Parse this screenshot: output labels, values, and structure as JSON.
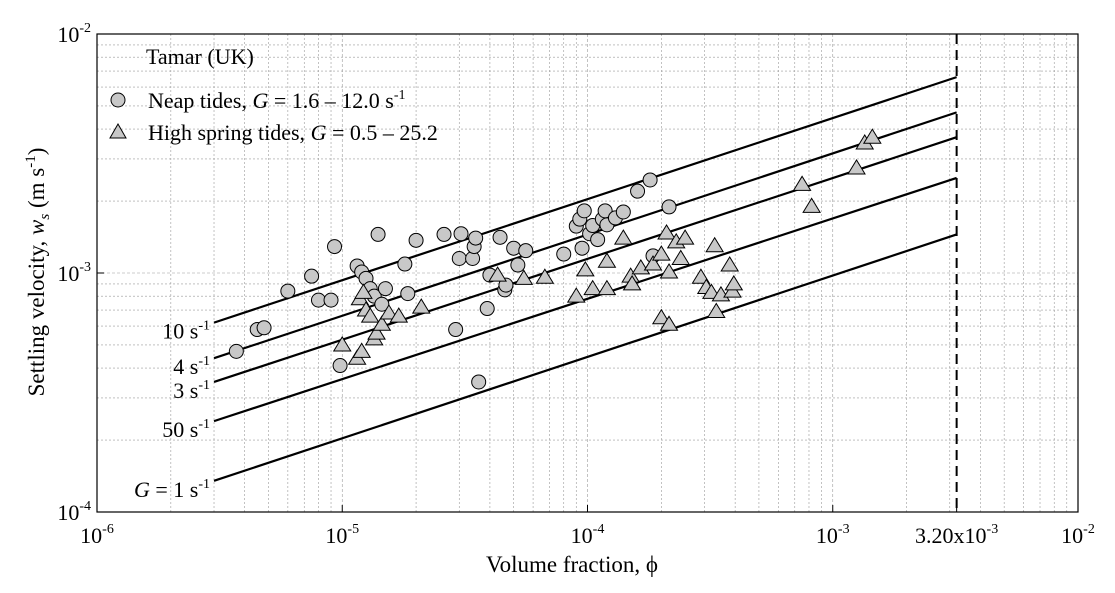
{
  "chart_data": {
    "type": "scatter",
    "x_scale": "log",
    "y_scale": "log",
    "xlim": [
      1e-06,
      0.01
    ],
    "ylim": [
      0.0001,
      0.01
    ],
    "xlabel": "Volume fraction, ϕ",
    "ylabel_parts": {
      "text": "Settling velocity, ",
      "var": "w",
      "sub": "s",
      "units_pre": " (m s",
      "units_sup": "-1",
      "units_post": ")"
    },
    "x_ticks": [
      {
        "value": 1e-06,
        "base": "10",
        "exp": "-6"
      },
      {
        "value": 1e-05,
        "base": "10",
        "exp": "-5"
      },
      {
        "value": 0.0001,
        "base": "10",
        "exp": "-4"
      },
      {
        "value": 0.001,
        "base": "10",
        "exp": "-3"
      },
      {
        "value": 0.0032,
        "base": "3.20x10",
        "exp": "-3"
      },
      {
        "value": 0.01,
        "base": "10",
        "exp": "-2"
      }
    ],
    "y_ticks": [
      {
        "value": 0.0001,
        "base": "10",
        "exp": "-4"
      },
      {
        "value": 0.001,
        "base": "10",
        "exp": "-3"
      },
      {
        "value": 0.01,
        "base": "10",
        "exp": "-2"
      }
    ],
    "vertical_line": {
      "x": 0.0032,
      "style": "dashed"
    },
    "legend": {
      "position": "top-left",
      "title": "Tamar (UK)",
      "entries": [
        {
          "marker": "circle",
          "pre": "Neap tides, ",
          "var": "G",
          "post": " = 1.6 – 12.0 s",
          "sup": "-1"
        },
        {
          "marker": "triangle",
          "pre": "High spring tides, ",
          "var": "G",
          "post": " = 0.5 – 25.2",
          "sup": ""
        }
      ]
    },
    "reference_lines": [
      {
        "prefix": "",
        "label": "10 s",
        "sup": "-1",
        "x_start": 3e-06,
        "x_end": 0.0032,
        "y_start": 0.00062,
        "y_end": 0.0066
      },
      {
        "prefix": "",
        "label": "4 s",
        "sup": "-1",
        "x_start": 3e-06,
        "x_end": 0.0032,
        "y_start": 0.00044,
        "y_end": 0.0047
      },
      {
        "prefix": "",
        "label": "3 s",
        "sup": "-1",
        "x_start": 3e-06,
        "x_end": 0.0032,
        "y_start": 0.00035,
        "y_end": 0.0037
      },
      {
        "prefix": "",
        "label": "50 s",
        "sup": "-1",
        "x_start": 3e-06,
        "x_end": 0.0032,
        "y_start": 0.00024,
        "y_end": 0.0025
      },
      {
        "prefix": "G",
        "label": " = 1 s",
        "sup": "-1",
        "x_start": 3e-06,
        "x_end": 0.0032,
        "y_start": 0.000135,
        "y_end": 0.00145
      }
    ],
    "series": [
      {
        "name": "Neap tides",
        "marker": "circle",
        "color": "#c8c8c8",
        "points": [
          [
            3.7e-06,
            0.00047
          ],
          [
            4.5e-06,
            0.00058
          ],
          [
            4.8e-06,
            0.00059
          ],
          [
            6e-06,
            0.00084
          ],
          [
            7.5e-06,
            0.00097
          ],
          [
            8e-06,
            0.00077
          ],
          [
            9e-06,
            0.00077
          ],
          [
            9.3e-06,
            0.00129
          ],
          [
            9.8e-06,
            0.00041
          ],
          [
            1.15e-05,
            0.00107
          ],
          [
            1.2e-05,
            0.00101
          ],
          [
            1.25e-05,
            0.00095
          ],
          [
            1.3e-05,
            0.00086
          ],
          [
            1.35e-05,
            0.0008
          ],
          [
            1.45e-05,
            0.00074
          ],
          [
            1.5e-05,
            0.00086
          ],
          [
            1.4e-05,
            0.00145
          ],
          [
            1.8e-05,
            0.00109
          ],
          [
            1.85e-05,
            0.00082
          ],
          [
            2e-05,
            0.00137
          ],
          [
            2.6e-05,
            0.00145
          ],
          [
            2.9e-05,
            0.00058
          ],
          [
            3e-05,
            0.00115
          ],
          [
            3.05e-05,
            0.00146
          ],
          [
            3.4e-05,
            0.00115
          ],
          [
            3.45e-05,
            0.00129
          ],
          [
            3.5e-05,
            0.0014
          ],
          [
            3.6e-05,
            0.00035
          ],
          [
            3.9e-05,
            0.00071
          ],
          [
            4e-05,
            0.00098
          ],
          [
            4.4e-05,
            0.00141
          ],
          [
            4.6e-05,
            0.00085
          ],
          [
            4.65e-05,
            0.00089
          ],
          [
            5e-05,
            0.00127
          ],
          [
            5.2e-05,
            0.00108
          ],
          [
            5.6e-05,
            0.00124
          ],
          [
            8e-05,
            0.0012
          ],
          [
            9e-05,
            0.00157
          ],
          [
            9.3e-05,
            0.00168
          ],
          [
            9.5e-05,
            0.00127
          ],
          [
            9.7e-05,
            0.00182
          ],
          [
            0.000102,
            0.00146
          ],
          [
            0.000105,
            0.00158
          ],
          [
            0.00011,
            0.00138
          ],
          [
            0.000115,
            0.00168
          ],
          [
            0.000118,
            0.00182
          ],
          [
            0.00012,
            0.00159
          ],
          [
            0.00013,
            0.0017
          ],
          [
            0.00014,
            0.0018
          ],
          [
            0.00016,
            0.0022
          ],
          [
            0.00018,
            0.00245
          ],
          [
            0.000185,
            0.00118
          ],
          [
            0.000215,
            0.00189
          ]
        ]
      },
      {
        "name": "High spring tides",
        "marker": "triangle",
        "color": "#c8c8c8",
        "points": [
          [
            1e-05,
            0.0005
          ],
          [
            1.15e-05,
            0.00044
          ],
          [
            1.18e-05,
            0.00078
          ],
          [
            1.2e-05,
            0.00047
          ],
          [
            1.22e-05,
            0.00083
          ],
          [
            1.25e-05,
            0.0007
          ],
          [
            1.3e-05,
            0.00066
          ],
          [
            1.35e-05,
            0.00053
          ],
          [
            1.38e-05,
            0.00056
          ],
          [
            1.45e-05,
            0.00061
          ],
          [
            1.55e-05,
            0.00068
          ],
          [
            1.7e-05,
            0.00066
          ],
          [
            2.1e-05,
            0.00072
          ],
          [
            4.3e-05,
            0.00098
          ],
          [
            5.5e-05,
            0.00095
          ],
          [
            6.7e-05,
            0.00096
          ],
          [
            9e-05,
            0.0008
          ],
          [
            9.8e-05,
            0.00103
          ],
          [
            0.000105,
            0.00086
          ],
          [
            0.00012,
            0.00112
          ],
          [
            0.00012,
            0.00086
          ],
          [
            0.00014,
            0.0014
          ],
          [
            0.00015,
            0.00097
          ],
          [
            0.000152,
            0.0009
          ],
          [
            0.000165,
            0.00105
          ],
          [
            0.000185,
            0.00109
          ],
          [
            0.0002,
            0.00065
          ],
          [
            0.0002,
            0.0012
          ],
          [
            0.00021,
            0.00147
          ],
          [
            0.000215,
            0.00101
          ],
          [
            0.000215,
            0.00061
          ],
          [
            0.00023,
            0.00135
          ],
          [
            0.00024,
            0.00115
          ],
          [
            0.00025,
            0.0014
          ],
          [
            0.00029,
            0.00096
          ],
          [
            0.000305,
            0.00087
          ],
          [
            0.00032,
            0.00083
          ],
          [
            0.00033,
            0.0013
          ],
          [
            0.000335,
            0.00069
          ],
          [
            0.00035,
            0.00081
          ],
          [
            0.00038,
            0.00108
          ],
          [
            0.00039,
            0.00084
          ],
          [
            0.000395,
            0.0009
          ],
          [
            0.00075,
            0.00235
          ],
          [
            0.00082,
            0.0019
          ],
          [
            0.00125,
            0.00275
          ],
          [
            0.00135,
            0.0035
          ],
          [
            0.00145,
            0.0037
          ]
        ]
      }
    ]
  }
}
